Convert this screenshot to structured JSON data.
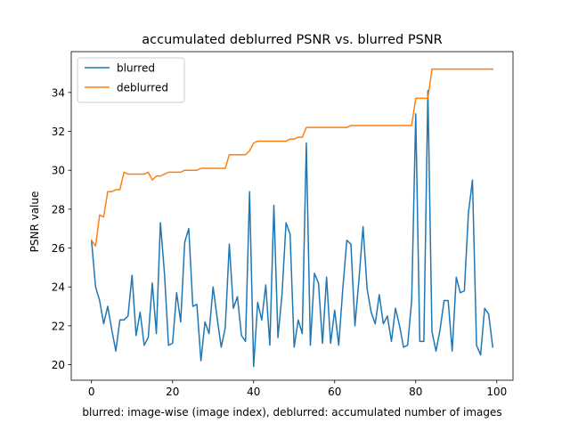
{
  "chart_data": {
    "type": "line",
    "title": "accumulated deblurred PSNR vs. blurred PSNR",
    "xlabel": "blurred: image-wise (image index),  deblurred: accumulated number of images",
    "ylabel": "PSNR value",
    "xlim": [
      -5,
      104
    ],
    "ylim": [
      19.2,
      36.1
    ],
    "xticks": [
      0,
      20,
      40,
      60,
      80,
      100
    ],
    "yticks": [
      20,
      22,
      24,
      26,
      28,
      30,
      32,
      34
    ],
    "grid": false,
    "legend_position": "upper-left",
    "x": [
      0,
      1,
      2,
      3,
      4,
      5,
      6,
      7,
      8,
      9,
      10,
      11,
      12,
      13,
      14,
      15,
      16,
      17,
      18,
      19,
      20,
      21,
      22,
      23,
      24,
      25,
      26,
      27,
      28,
      29,
      30,
      31,
      32,
      33,
      34,
      35,
      36,
      37,
      38,
      39,
      40,
      41,
      42,
      43,
      44,
      45,
      46,
      47,
      48,
      49,
      50,
      51,
      52,
      53,
      54,
      55,
      56,
      57,
      58,
      59,
      60,
      61,
      62,
      63,
      64,
      65,
      66,
      67,
      68,
      69,
      70,
      71,
      72,
      73,
      74,
      75,
      76,
      77,
      78,
      79,
      80,
      81,
      82,
      83,
      84,
      85,
      86,
      87,
      88,
      89,
      90,
      91,
      92,
      93,
      94,
      95,
      96,
      97,
      98,
      99
    ],
    "series": [
      {
        "name": "blurred",
        "color": "#1f77b4",
        "values": [
          26.4,
          24.0,
          23.3,
          22.1,
          23.0,
          21.8,
          20.7,
          22.3,
          22.3,
          22.5,
          24.6,
          21.5,
          22.7,
          21.0,
          21.4,
          24.2,
          21.6,
          27.3,
          24.7,
          21.0,
          21.1,
          23.7,
          22.2,
          26.3,
          27.0,
          23.0,
          23.1,
          20.2,
          22.2,
          21.6,
          24.0,
          22.4,
          20.9,
          21.9,
          26.2,
          22.9,
          23.5,
          21.5,
          21.2,
          28.9,
          19.9,
          23.2,
          22.3,
          24.1,
          21.0,
          28.2,
          21.4,
          23.6,
          27.3,
          26.7,
          20.9,
          22.3,
          21.6,
          31.4,
          21.0,
          24.7,
          24.2,
          21.1,
          24.5,
          21.1,
          22.8,
          21.0,
          23.9,
          26.4,
          26.2,
          22.0,
          24.4,
          27.1,
          23.9,
          22.7,
          22.1,
          23.6,
          22.1,
          22.5,
          21.2,
          22.9,
          22.0,
          20.9,
          21.0,
          23.3,
          32.9,
          21.2,
          21.2,
          34.1,
          21.7,
          20.7,
          21.8,
          23.3,
          23.3,
          20.7,
          24.5,
          23.7,
          23.8,
          27.8,
          29.5,
          21.0,
          20.5,
          22.9,
          22.6,
          20.9
        ]
      },
      {
        "name": "deblurred",
        "color": "#ff7f0e",
        "values": [
          26.4,
          26.1,
          27.7,
          27.6,
          28.9,
          28.9,
          29.0,
          29.0,
          29.9,
          29.8,
          29.8,
          29.8,
          29.8,
          29.8,
          29.9,
          29.5,
          29.7,
          29.7,
          29.8,
          29.9,
          29.9,
          29.9,
          29.9,
          30.0,
          30.0,
          30.0,
          30.0,
          30.1,
          30.1,
          30.1,
          30.1,
          30.1,
          30.1,
          30.1,
          30.8,
          30.8,
          30.8,
          30.8,
          30.8,
          31.0,
          31.4,
          31.5,
          31.5,
          31.5,
          31.5,
          31.5,
          31.5,
          31.5,
          31.5,
          31.6,
          31.6,
          31.7,
          31.7,
          32.2,
          32.2,
          32.2,
          32.2,
          32.2,
          32.2,
          32.2,
          32.2,
          32.2,
          32.2,
          32.2,
          32.3,
          32.3,
          32.3,
          32.3,
          32.3,
          32.3,
          32.3,
          32.3,
          32.3,
          32.3,
          32.3,
          32.3,
          32.3,
          32.3,
          32.3,
          32.3,
          33.7,
          33.7,
          33.7,
          33.7,
          35.2,
          35.2,
          35.2,
          35.2,
          35.2,
          35.2,
          35.2,
          35.2,
          35.2,
          35.2,
          35.2,
          35.2,
          35.2,
          35.2,
          35.2,
          35.2
        ]
      }
    ]
  }
}
